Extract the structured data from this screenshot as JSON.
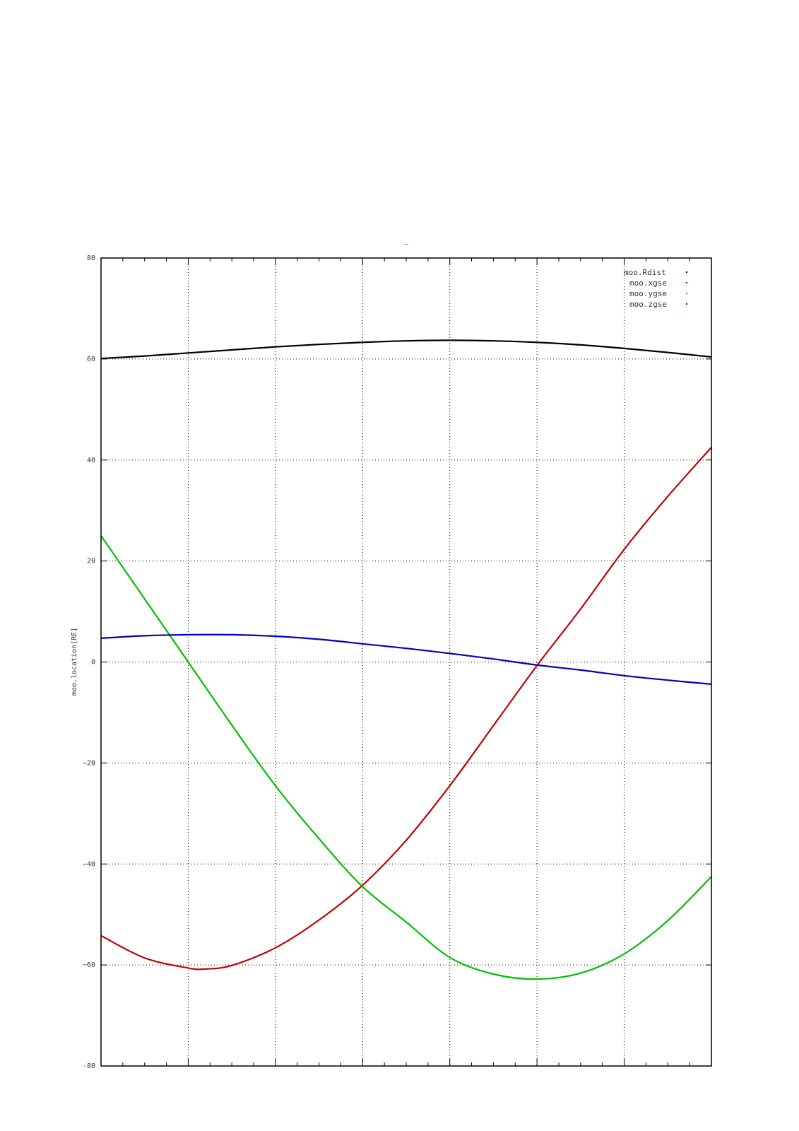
{
  "chart_data": {
    "type": "line",
    "title": "–",
    "xlabel": "",
    "ylabel": "moo.location[RE]",
    "ylim": [
      -80,
      80
    ],
    "xlim": [
      0,
      7
    ],
    "yticks": [
      -80,
      -60,
      -40,
      -20,
      0,
      20,
      40,
      60,
      80
    ],
    "ytick_labels": [
      "-80",
      "−60",
      "−40",
      "−20",
      "0",
      "20",
      "40",
      "60",
      "80"
    ],
    "xgrid": [
      1,
      2,
      3,
      4,
      5,
      6
    ],
    "grid": true,
    "legend_position": "top-right",
    "series": [
      {
        "name": "moo.Rdist",
        "color": "#000000",
        "x": [
          0,
          0.5,
          1,
          1.5,
          2,
          2.5,
          3,
          3.5,
          4,
          4.5,
          5,
          5.5,
          6,
          6.5,
          7
        ],
        "values": [
          60.1,
          60.6,
          61.2,
          61.8,
          62.4,
          62.9,
          63.3,
          63.6,
          63.7,
          63.6,
          63.3,
          62.8,
          62.1,
          61.3,
          60.4
        ]
      },
      {
        "name": "moo.xgse",
        "color": "#c00000",
        "x": [
          0,
          0.5,
          1,
          1.2,
          1.5,
          2,
          2.5,
          3,
          3.5,
          4,
          4.5,
          5,
          5.5,
          6,
          6.5,
          7
        ],
        "values": [
          -54.2,
          -58.6,
          -60.6,
          -60.8,
          -60.1,
          -56.6,
          -51.1,
          -44.2,
          -35.3,
          -24.5,
          -12.6,
          -0.7,
          10.5,
          22.3,
          32.8,
          42.5
        ]
      },
      {
        "name": "moo.ygse",
        "color": "#00c000",
        "x": [
          0,
          0.5,
          0.8,
          1,
          1.5,
          2,
          2.5,
          3,
          3.5,
          4,
          4.5,
          5,
          5.5,
          6,
          6.5,
          7
        ],
        "values": [
          25.0,
          12.5,
          5.0,
          0.0,
          -12.5,
          -24.5,
          -35.0,
          -44.5,
          -51.5,
          -58.5,
          -61.8,
          -62.8,
          -61.6,
          -57.8,
          -51.2,
          -42.5
        ]
      },
      {
        "name": "moo.zgse",
        "color": "#0000c0",
        "x": [
          0,
          0.5,
          1,
          1.5,
          2,
          2.5,
          3,
          3.5,
          4,
          4.5,
          5,
          5.5,
          6,
          6.5,
          7
        ],
        "values": [
          4.7,
          5.2,
          5.4,
          5.4,
          5.1,
          4.5,
          3.6,
          2.7,
          1.7,
          0.6,
          -0.6,
          -1.6,
          -2.7,
          -3.6,
          -4.4
        ]
      }
    ]
  }
}
